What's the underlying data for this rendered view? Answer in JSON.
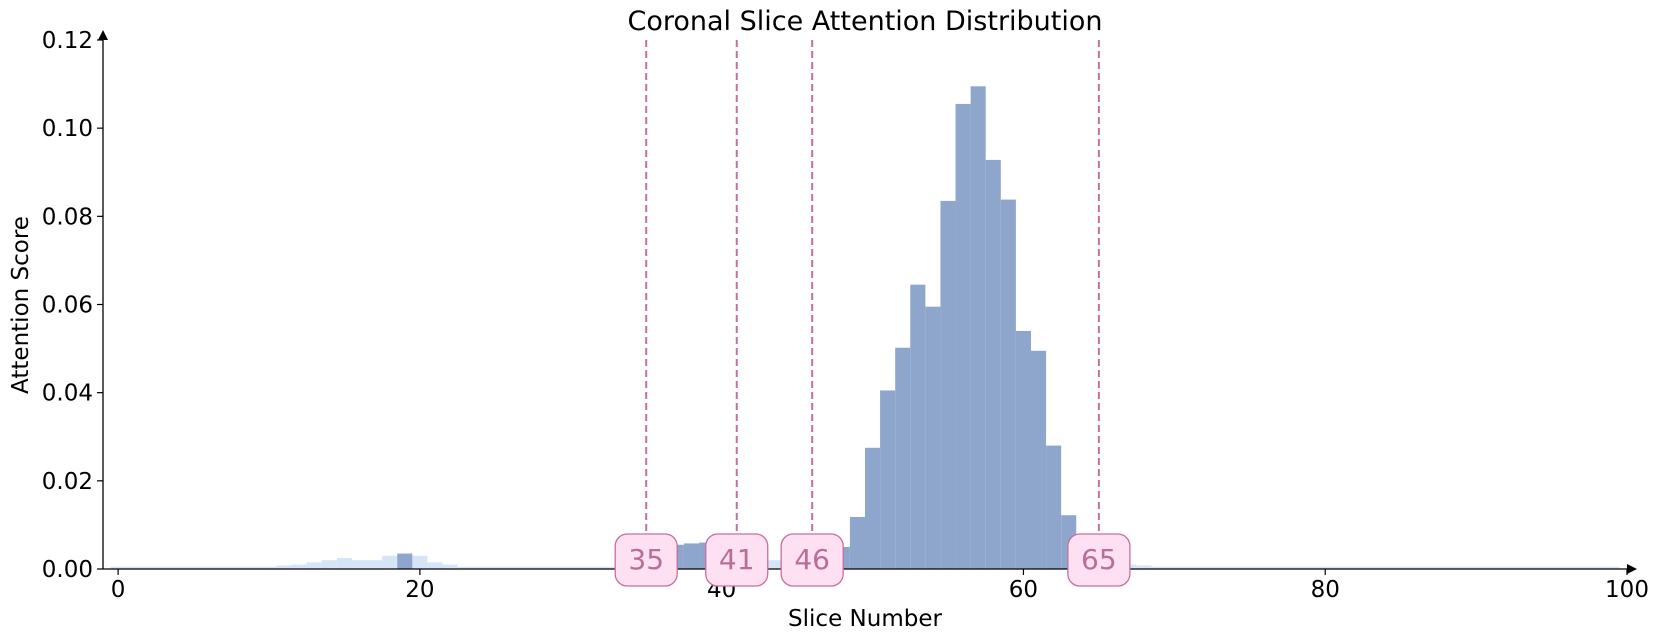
{
  "chart_data": {
    "type": "bar",
    "title": "Coronal Slice Attention Distribution",
    "xlabel": "Slice Number",
    "ylabel": "Attention Score",
    "xlim": [
      -1,
      100
    ],
    "ylim": [
      0.0,
      0.12
    ],
    "x_ticks": [
      {
        "value": 0,
        "label": "0"
      },
      {
        "value": 20,
        "label": "20"
      },
      {
        "value": 40,
        "label": "40"
      },
      {
        "value": 60,
        "label": "60"
      },
      {
        "value": 80,
        "label": "80"
      },
      {
        "value": 100,
        "label": "100"
      }
    ],
    "y_ticks": [
      {
        "value": 0.0,
        "label": "0.00"
      },
      {
        "value": 0.02,
        "label": "0.02"
      },
      {
        "value": 0.04,
        "label": "0.04"
      },
      {
        "value": 0.06,
        "label": "0.06"
      },
      {
        "value": 0.08,
        "label": "0.08"
      },
      {
        "value": 0.1,
        "label": "0.10"
      },
      {
        "value": 0.12,
        "label": "0.12"
      }
    ],
    "grid": false,
    "colors": {
      "highlight": "#8ea6cc",
      "background_bar": "#d6e4f8",
      "marker_line": "#c4709e",
      "marker_fill": "#fde0f2",
      "marker_text": "#b86e98",
      "axis": "#000000"
    },
    "series": [
      {
        "role": "background",
        "x": [
          0,
          1,
          2,
          3,
          4,
          5,
          6,
          7,
          8,
          9,
          10,
          11,
          12,
          13,
          14,
          15,
          16,
          17,
          18,
          20,
          21,
          22,
          23,
          24,
          25,
          26,
          27,
          28,
          29,
          30,
          31,
          32,
          33,
          34,
          35,
          36,
          43,
          44,
          45,
          67,
          68,
          69,
          70,
          71,
          72,
          73,
          74,
          75,
          76,
          77,
          78,
          79,
          80,
          81,
          82,
          83,
          84,
          85,
          86,
          87,
          88,
          89,
          90,
          91,
          92,
          93,
          94,
          95,
          96,
          97,
          98,
          99
        ],
        "values": [
          0.0005,
          0.0005,
          0.0005,
          0.0005,
          0.0005,
          0.0005,
          0.0005,
          0.0005,
          0.0005,
          0.0005,
          0.0005,
          0.0008,
          0.001,
          0.0015,
          0.002,
          0.0025,
          0.002,
          0.002,
          0.003,
          0.003,
          0.0015,
          0.001,
          0.0005,
          0.0005,
          0.0005,
          0.0005,
          0.0005,
          0.0005,
          0.0005,
          0.0005,
          0.0005,
          0.0005,
          0.0005,
          0.0005,
          0.0005,
          0.0005,
          0.002,
          0.002,
          0.002,
          0.001,
          0.0008,
          0.0005,
          0.0005,
          0.0005,
          0.0005,
          0.0005,
          0.0005,
          0.0005,
          0.0005,
          0.0005,
          0.0005,
          0.0005,
          0.0005,
          0.0005,
          0.0005,
          0.0005,
          0.0005,
          0.0005,
          0.0005,
          0.0005,
          0.0005,
          0.0005,
          0.0005,
          0.0005,
          0.0005,
          0.0005,
          0.0005,
          0.0005,
          0.0005,
          0.0005,
          0.0005,
          0.0005
        ]
      },
      {
        "role": "highlighted",
        "x": [
          19,
          37,
          38,
          39,
          40,
          41,
          42,
          46,
          47,
          48,
          49,
          50,
          51,
          52,
          53,
          54,
          55,
          56,
          57,
          58,
          59,
          60,
          61,
          62,
          63,
          64
        ],
        "values": [
          0.0035,
          0.0055,
          0.0058,
          0.006,
          0.0062,
          0.006,
          0.0058,
          0.004,
          0.0045,
          0.005,
          0.0118,
          0.0275,
          0.0405,
          0.0502,
          0.0645,
          0.0595,
          0.0835,
          0.1055,
          0.1095,
          0.0928,
          0.0838,
          0.054,
          0.0495,
          0.028,
          0.0122,
          0.0055
        ]
      }
    ],
    "markers": [
      {
        "value": 35,
        "label": "35"
      },
      {
        "value": 41,
        "label": "41"
      },
      {
        "value": 46,
        "label": "46"
      },
      {
        "value": 65,
        "label": "65"
      }
    ]
  }
}
